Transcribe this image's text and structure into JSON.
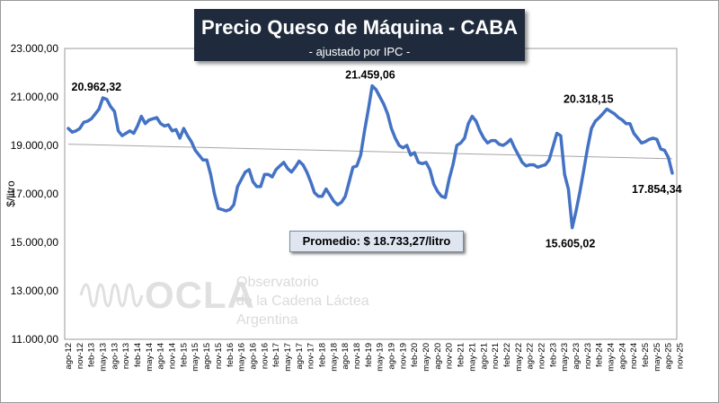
{
  "title": "Precio Queso de Máquina - CABA",
  "subtitle": "- ajustado por IPC -",
  "average_label": "Promedio: $ 18.733,27/litro",
  "logo": {
    "word": "OCLA",
    "line1": "Observatorio",
    "line2": "de la Cadena Láctea",
    "line3": "Argentina"
  },
  "colors": {
    "line": "#4472c4",
    "trend": "#a6a6a6",
    "title_bg": "#1f2b3d",
    "avg_box": "#dfe6f0"
  },
  "chart_data": {
    "type": "line",
    "title": "Precio Queso de Máquina - CABA",
    "subtitle": "- ajustado por IPC -",
    "ylabel": "$/litro",
    "ylim": [
      11000,
      23000
    ],
    "y_ticks": [
      "11.000,00",
      "13.000,00",
      "15.000,00",
      "17.000,00",
      "19.000,00",
      "21.000,00",
      "23.000,00"
    ],
    "x_labels": [
      "ago-12",
      "nov-12",
      "feb-13",
      "may-13",
      "ago-13",
      "nov-13",
      "feb-14",
      "may-14",
      "ago-14",
      "nov-14",
      "feb-15",
      "may-15",
      "ago-15",
      "nov-15",
      "feb-16",
      "may-16",
      "ago-16",
      "nov-16",
      "feb-17",
      "may-17",
      "ago-17",
      "nov-17",
      "feb-18",
      "may-18",
      "ago-18",
      "nov-18",
      "feb-19",
      "may-19",
      "ago-19",
      "nov-19",
      "feb-20",
      "may-20",
      "ago-20",
      "nov-20",
      "feb-21",
      "may-21",
      "ago-21",
      "nov-21",
      "feb-22",
      "may-22",
      "ago-22",
      "nov-22",
      "feb-23",
      "may-23",
      "ago-23",
      "nov-23",
      "feb-24",
      "may-24",
      "ago-24",
      "nov-24",
      "feb-25",
      "may-25",
      "ago-25",
      "nov-25"
    ],
    "series": [
      {
        "values": [
          19700,
          19550,
          19600,
          19700,
          19950,
          20000,
          20100,
          20300,
          20500,
          20962.32,
          20900,
          20600,
          20400,
          19600,
          19400,
          19500,
          19600,
          19500,
          19800,
          20200,
          19900,
          20050,
          20100,
          20150,
          19900,
          19800,
          19850,
          19600,
          19650,
          19300,
          19700,
          19400,
          19150,
          18800,
          18600,
          18400,
          18400,
          17800,
          17000,
          16400,
          16350,
          16300,
          16350,
          16550,
          17300,
          17600,
          17900,
          18000,
          17500,
          17300,
          17300,
          17800,
          17800,
          17700,
          18000,
          18150,
          18300,
          18050,
          17900,
          18100,
          18350,
          18200,
          17900,
          17500,
          17050,
          16900,
          16900,
          17200,
          16950,
          16700,
          16550,
          16650,
          16900,
          17500,
          18100,
          18150,
          18600,
          19600,
          20500,
          21459.06,
          21300,
          21000,
          20700,
          20300,
          19700,
          19300,
          19000,
          18900,
          19000,
          18600,
          18700,
          18300,
          18250,
          18300,
          18000,
          17400,
          17100,
          16900,
          16850,
          17600,
          18200,
          19000,
          19100,
          19300,
          19900,
          20200,
          20000,
          19600,
          19300,
          19100,
          19200,
          19200,
          19050,
          19000,
          19100,
          19250,
          18900,
          18600,
          18300,
          18150,
          18200,
          18200,
          18100,
          18150,
          18200,
          18400,
          18950,
          19500,
          19400,
          17800,
          17200,
          15605.02,
          16300,
          17100,
          18000,
          18900,
          19700,
          20000,
          20150,
          20318.15,
          20500,
          20400,
          20300,
          20150,
          20050,
          19900,
          19900,
          19500,
          19300,
          19100,
          19150,
          19250,
          19300,
          19250,
          18850,
          18800,
          18500,
          17854.34
        ]
      }
    ],
    "trend_line": [
      19050,
      18450
    ],
    "data_labels": [
      {
        "text": "20.962,32",
        "value": 20962.32
      },
      {
        "text": "21.459,06",
        "value": 21459.06
      },
      {
        "text": "15.605,02",
        "value": 15605.02
      },
      {
        "text": "20.318,15",
        "value": 20318.15
      },
      {
        "text": "17.854,34",
        "value": 17854.34
      }
    ],
    "grid": false,
    "legend": "none"
  }
}
